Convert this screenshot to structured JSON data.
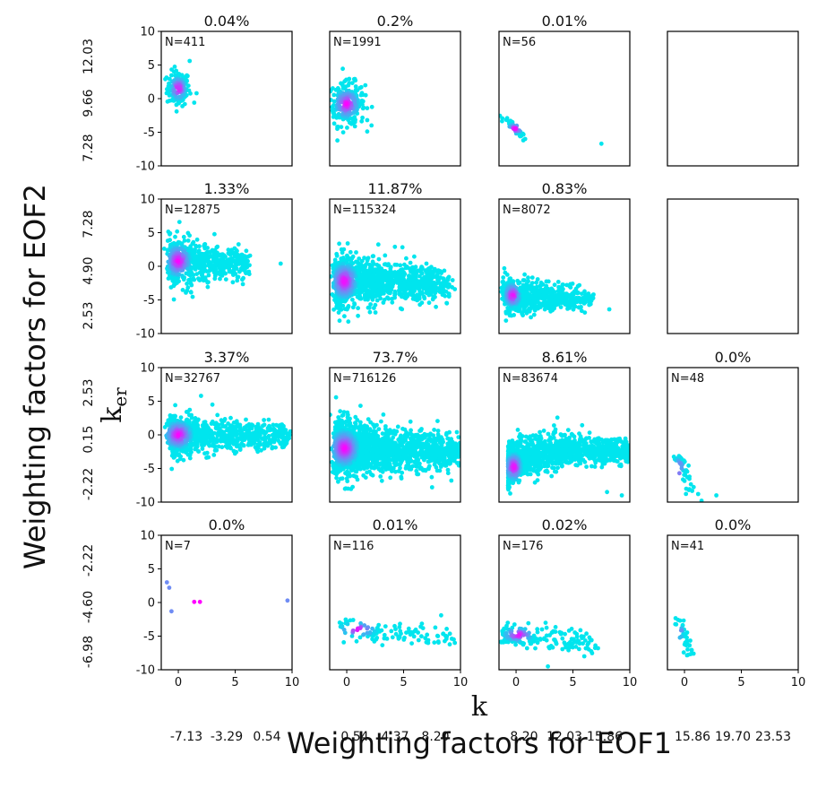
{
  "figure": {
    "xlabel": "Weighting factors for EOF1",
    "ylabel": "Weighting factors for EOF2",
    "inner_xlabel": "k",
    "inner_ylabel": "k",
    "inner_ylabel_sub": "er",
    "outer_x_ticks": [
      [
        "-7.13",
        "-3.29",
        "0.54"
      ],
      [
        "0.54",
        "4.37",
        "8.20"
      ],
      [
        "8.20",
        "12.03",
        "15.86"
      ],
      [
        "15.86",
        "19.70",
        "23.53"
      ]
    ],
    "outer_y_ticks": [
      [
        "7.28",
        "9.66",
        "12.03"
      ],
      [
        "2.53",
        "4.90",
        "7.28"
      ],
      [
        "-2.22",
        "0.15",
        "2.53"
      ],
      [
        "-6.98",
        "-4.60",
        "-2.22"
      ]
    ]
  },
  "colors": {
    "low_density": "#00e5ee",
    "mid_density": "#6f8cf4",
    "high_density": "#ff00ff"
  },
  "chart_data": {
    "type": "scatter",
    "layout": "4x4 grid of density-colored scatter panels",
    "xlim": [
      -1.5,
      10
    ],
    "ylim": [
      -10,
      10
    ],
    "x_ticks": [
      "0",
      "5",
      "10"
    ],
    "y_ticks": [
      "10",
      "5",
      "0",
      "-5",
      "-10"
    ],
    "grid": false,
    "legend": "none",
    "panels": [
      {
        "row": 0,
        "col": 0,
        "percent": "0.04%",
        "n_label": "N=411",
        "shape": "blob",
        "center": [
          0.0,
          1.5
        ],
        "spread": [
          0.5,
          1.3
        ],
        "tail_x": 0,
        "tail_y": 0,
        "count": 140,
        "extra_points": [
          [
            1.0,
            5.6
          ],
          [
            1.4,
            -0.6
          ],
          [
            1.6,
            0.8
          ]
        ]
      },
      {
        "row": 0,
        "col": 1,
        "percent": "0.2%",
        "n_label": "N=1991",
        "shape": "blob",
        "center": [
          0.0,
          -0.8
        ],
        "spread": [
          0.8,
          1.6
        ],
        "tail_x": 0,
        "tail_y": 0,
        "count": 260,
        "extra_points": [
          [
            1.8,
            -3.2
          ],
          [
            0.8,
            1.8
          ]
        ]
      },
      {
        "row": 0,
        "col": 2,
        "percent": "0.01%",
        "n_label": "N=56",
        "shape": "diag",
        "center": [
          -0.1,
          -4.5
        ],
        "spread": [
          0.5,
          0.6
        ],
        "tail_x": 0,
        "tail_y": 0,
        "count": 45,
        "extra_points": [
          [
            7.5,
            -6.7
          ],
          [
            0.8,
            -6.0
          ]
        ]
      },
      {
        "row": 0,
        "col": 3,
        "percent": "",
        "n_label": "",
        "shape": "empty",
        "center": [
          0,
          0
        ],
        "spread": [
          0,
          0
        ],
        "tail_x": 0,
        "tail_y": 0,
        "count": 0,
        "extra_points": []
      },
      {
        "row": 1,
        "col": 0,
        "percent": "1.33%",
        "n_label": "N=12875",
        "shape": "fan",
        "center": [
          0.0,
          0.8
        ],
        "spread": [
          0.8,
          1.8
        ],
        "tail_x": 6.0,
        "tail_y": -1.2,
        "count": 650,
        "extra_points": [
          [
            9.0,
            0.4
          ],
          [
            6.2,
            -0.8
          ]
        ]
      },
      {
        "row": 1,
        "col": 1,
        "percent": "11.87%",
        "n_label": "N=115324",
        "shape": "fan",
        "center": [
          -0.2,
          -2.2
        ],
        "spread": [
          0.8,
          2.0
        ],
        "tail_x": 9.0,
        "tail_y": -1.3,
        "count": 1200,
        "extra_points": [
          [
            9.5,
            -3.4
          ],
          [
            8.8,
            -5.5
          ]
        ]
      },
      {
        "row": 1,
        "col": 2,
        "percent": "0.83%",
        "n_label": "N=8072",
        "shape": "fan",
        "center": [
          -0.3,
          -4.3
        ],
        "spread": [
          0.5,
          1.3
        ],
        "tail_x": 6.5,
        "tail_y": -1.8,
        "count": 650,
        "extra_points": [
          [
            8.2,
            -6.4
          ]
        ]
      },
      {
        "row": 1,
        "col": 3,
        "percent": "",
        "n_label": "",
        "shape": "empty",
        "center": [
          0,
          0
        ],
        "spread": [
          0,
          0
        ],
        "tail_x": 0,
        "tail_y": 0,
        "count": 0,
        "extra_points": []
      },
      {
        "row": 2,
        "col": 0,
        "percent": "3.37%",
        "n_label": "N=32767",
        "shape": "fan",
        "center": [
          0.0,
          0.0
        ],
        "spread": [
          0.9,
          1.5
        ],
        "tail_x": 9.8,
        "tail_y": -0.6,
        "count": 900,
        "extra_points": [
          [
            9.6,
            0.0
          ],
          [
            2.0,
            5.8
          ],
          [
            3.0,
            4.5
          ]
        ]
      },
      {
        "row": 2,
        "col": 1,
        "percent": "73.7%",
        "n_label": "N=716126",
        "shape": "band",
        "center": [
          -0.2,
          -2.0
        ],
        "spread": [
          0.9,
          2.0
        ],
        "tail_x": 11.0,
        "tail_y": -1.5,
        "count": 1700,
        "extra_points": [
          [
            9.2,
            -6.8
          ],
          [
            7.5,
            -7.8
          ]
        ]
      },
      {
        "row": 2,
        "col": 2,
        "percent": "8.61%",
        "n_label": "N=83674",
        "shape": "decay",
        "center": [
          -0.2,
          -4.8
        ],
        "spread": [
          0.5,
          1.5
        ],
        "tail_x": 10.0,
        "tail_y": -4.5,
        "count": 1300,
        "extra_points": [
          [
            9.3,
            -9.0
          ],
          [
            8.0,
            -8.5
          ]
        ]
      },
      {
        "row": 2,
        "col": 3,
        "percent": "0.0%",
        "n_label": "N=48",
        "shape": "steep",
        "center": [
          -0.5,
          -5.0
        ],
        "spread": [
          0.3,
          1.2
        ],
        "tail_x": 0,
        "tail_y": 0,
        "count": 45,
        "extra_points": [
          [
            2.8,
            -9.0
          ],
          [
            1.5,
            -9.8
          ],
          [
            1.2,
            -8.8
          ]
        ]
      },
      {
        "row": 3,
        "col": 0,
        "percent": "0.0%",
        "n_label": "N=7",
        "shape": "points",
        "center": [
          0,
          0
        ],
        "spread": [
          0,
          0
        ],
        "tail_x": 0,
        "tail_y": 0,
        "count": 0,
        "extra_points": [
          [
            -1.0,
            3.0
          ],
          [
            -0.8,
            2.2
          ],
          [
            -0.6,
            -1.3
          ],
          [
            1.4,
            0.1
          ],
          [
            1.9,
            0.1
          ],
          [
            9.6,
            0.3
          ]
        ],
        "hot_points": [
          [
            1.4,
            0.1
          ],
          [
            1.9,
            0.1
          ]
        ]
      },
      {
        "row": 3,
        "col": 1,
        "percent": "0.01%",
        "n_label": "N=116",
        "shape": "decay_sparse",
        "center": [
          1.0,
          -4.0
        ],
        "spread": [
          1.2,
          0.8
        ],
        "tail_x": 9.5,
        "tail_y": -1.5,
        "count": 110,
        "extra_points": [
          [
            8.3,
            -1.9
          ],
          [
            9.5,
            -6.0
          ],
          [
            6.5,
            -3.6
          ],
          [
            7.0,
            -5.9
          ]
        ]
      },
      {
        "row": 3,
        "col": 2,
        "percent": "0.02%",
        "n_label": "N=176",
        "shape": "decay_sparse",
        "center": [
          0.2,
          -4.8
        ],
        "spread": [
          1.0,
          0.8
        ],
        "tail_x": 7.0,
        "tail_y": -2.0,
        "count": 170,
        "extra_points": [
          [
            7.2,
            -6.8
          ],
          [
            6.0,
            -8.0
          ],
          [
            2.8,
            -9.5
          ]
        ]
      },
      {
        "row": 3,
        "col": 3,
        "percent": "0.0%",
        "n_label": "N=41",
        "shape": "steep",
        "center": [
          -0.5,
          -4.4
        ],
        "spread": [
          0.3,
          0.8
        ],
        "tail_x": 0,
        "tail_y": 0,
        "count": 38,
        "extra_points": [
          [
            0.8,
            -7.6
          ],
          [
            0.2,
            -6.0
          ]
        ]
      }
    ]
  }
}
